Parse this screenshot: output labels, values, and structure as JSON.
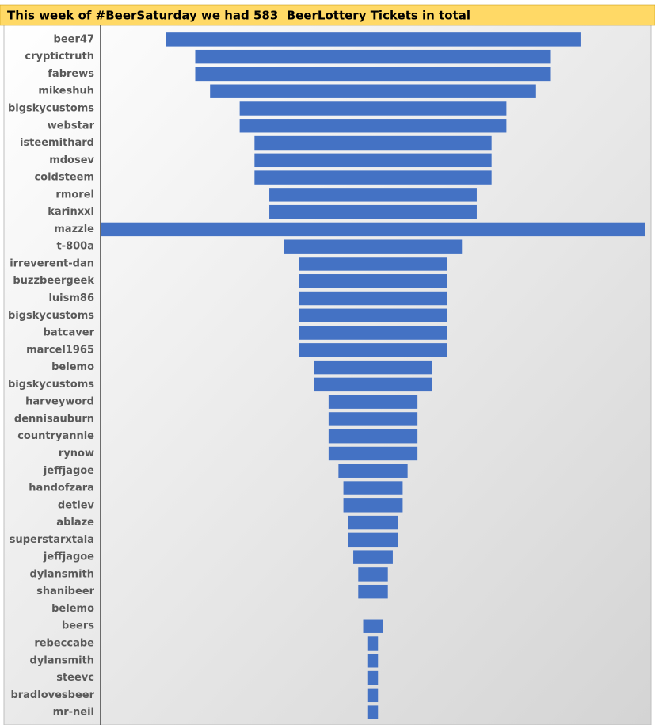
{
  "chart_data": {
    "type": "funnel",
    "title": "This week of #BeerSaturday we had 583  BeerLottery Tickets in total",
    "categories": [
      "beer47",
      "cryptictruth",
      "fabrews",
      "mikeshuh",
      "bigskycustoms",
      "webstar",
      "isteemithard",
      "mdosev",
      "coldsteem",
      "rmorel",
      "karinxxl",
      "mazzle",
      "t-800a",
      "irreverent-dan",
      "buzzbeergeek",
      "luism86",
      "bigskycustoms",
      "batcaver",
      "marcel1965",
      "belemo",
      "bigskycustoms",
      "harveyword",
      "dennisauburn",
      "countryannie",
      "rynow",
      "jeffjagoe",
      "handofzara",
      "detlev",
      "ablaze",
      "superstarxtala",
      "jeffjagoe",
      "dylansmith",
      "shanibeer",
      "belemo",
      "beers",
      "rebeccabe",
      "dylansmith",
      "steevc",
      "bradlovesbeer",
      "mr-neil"
    ],
    "values": [
      42,
      36,
      36,
      33,
      27,
      27,
      24,
      24,
      24,
      21,
      21,
      55,
      18,
      15,
      15,
      15,
      15,
      15,
      15,
      12,
      12,
      9,
      9,
      9,
      9,
      7,
      6,
      6,
      5,
      5,
      4,
      3,
      3,
      0,
      2,
      1,
      1,
      1,
      1,
      1
    ],
    "color": "#4472c4"
  }
}
